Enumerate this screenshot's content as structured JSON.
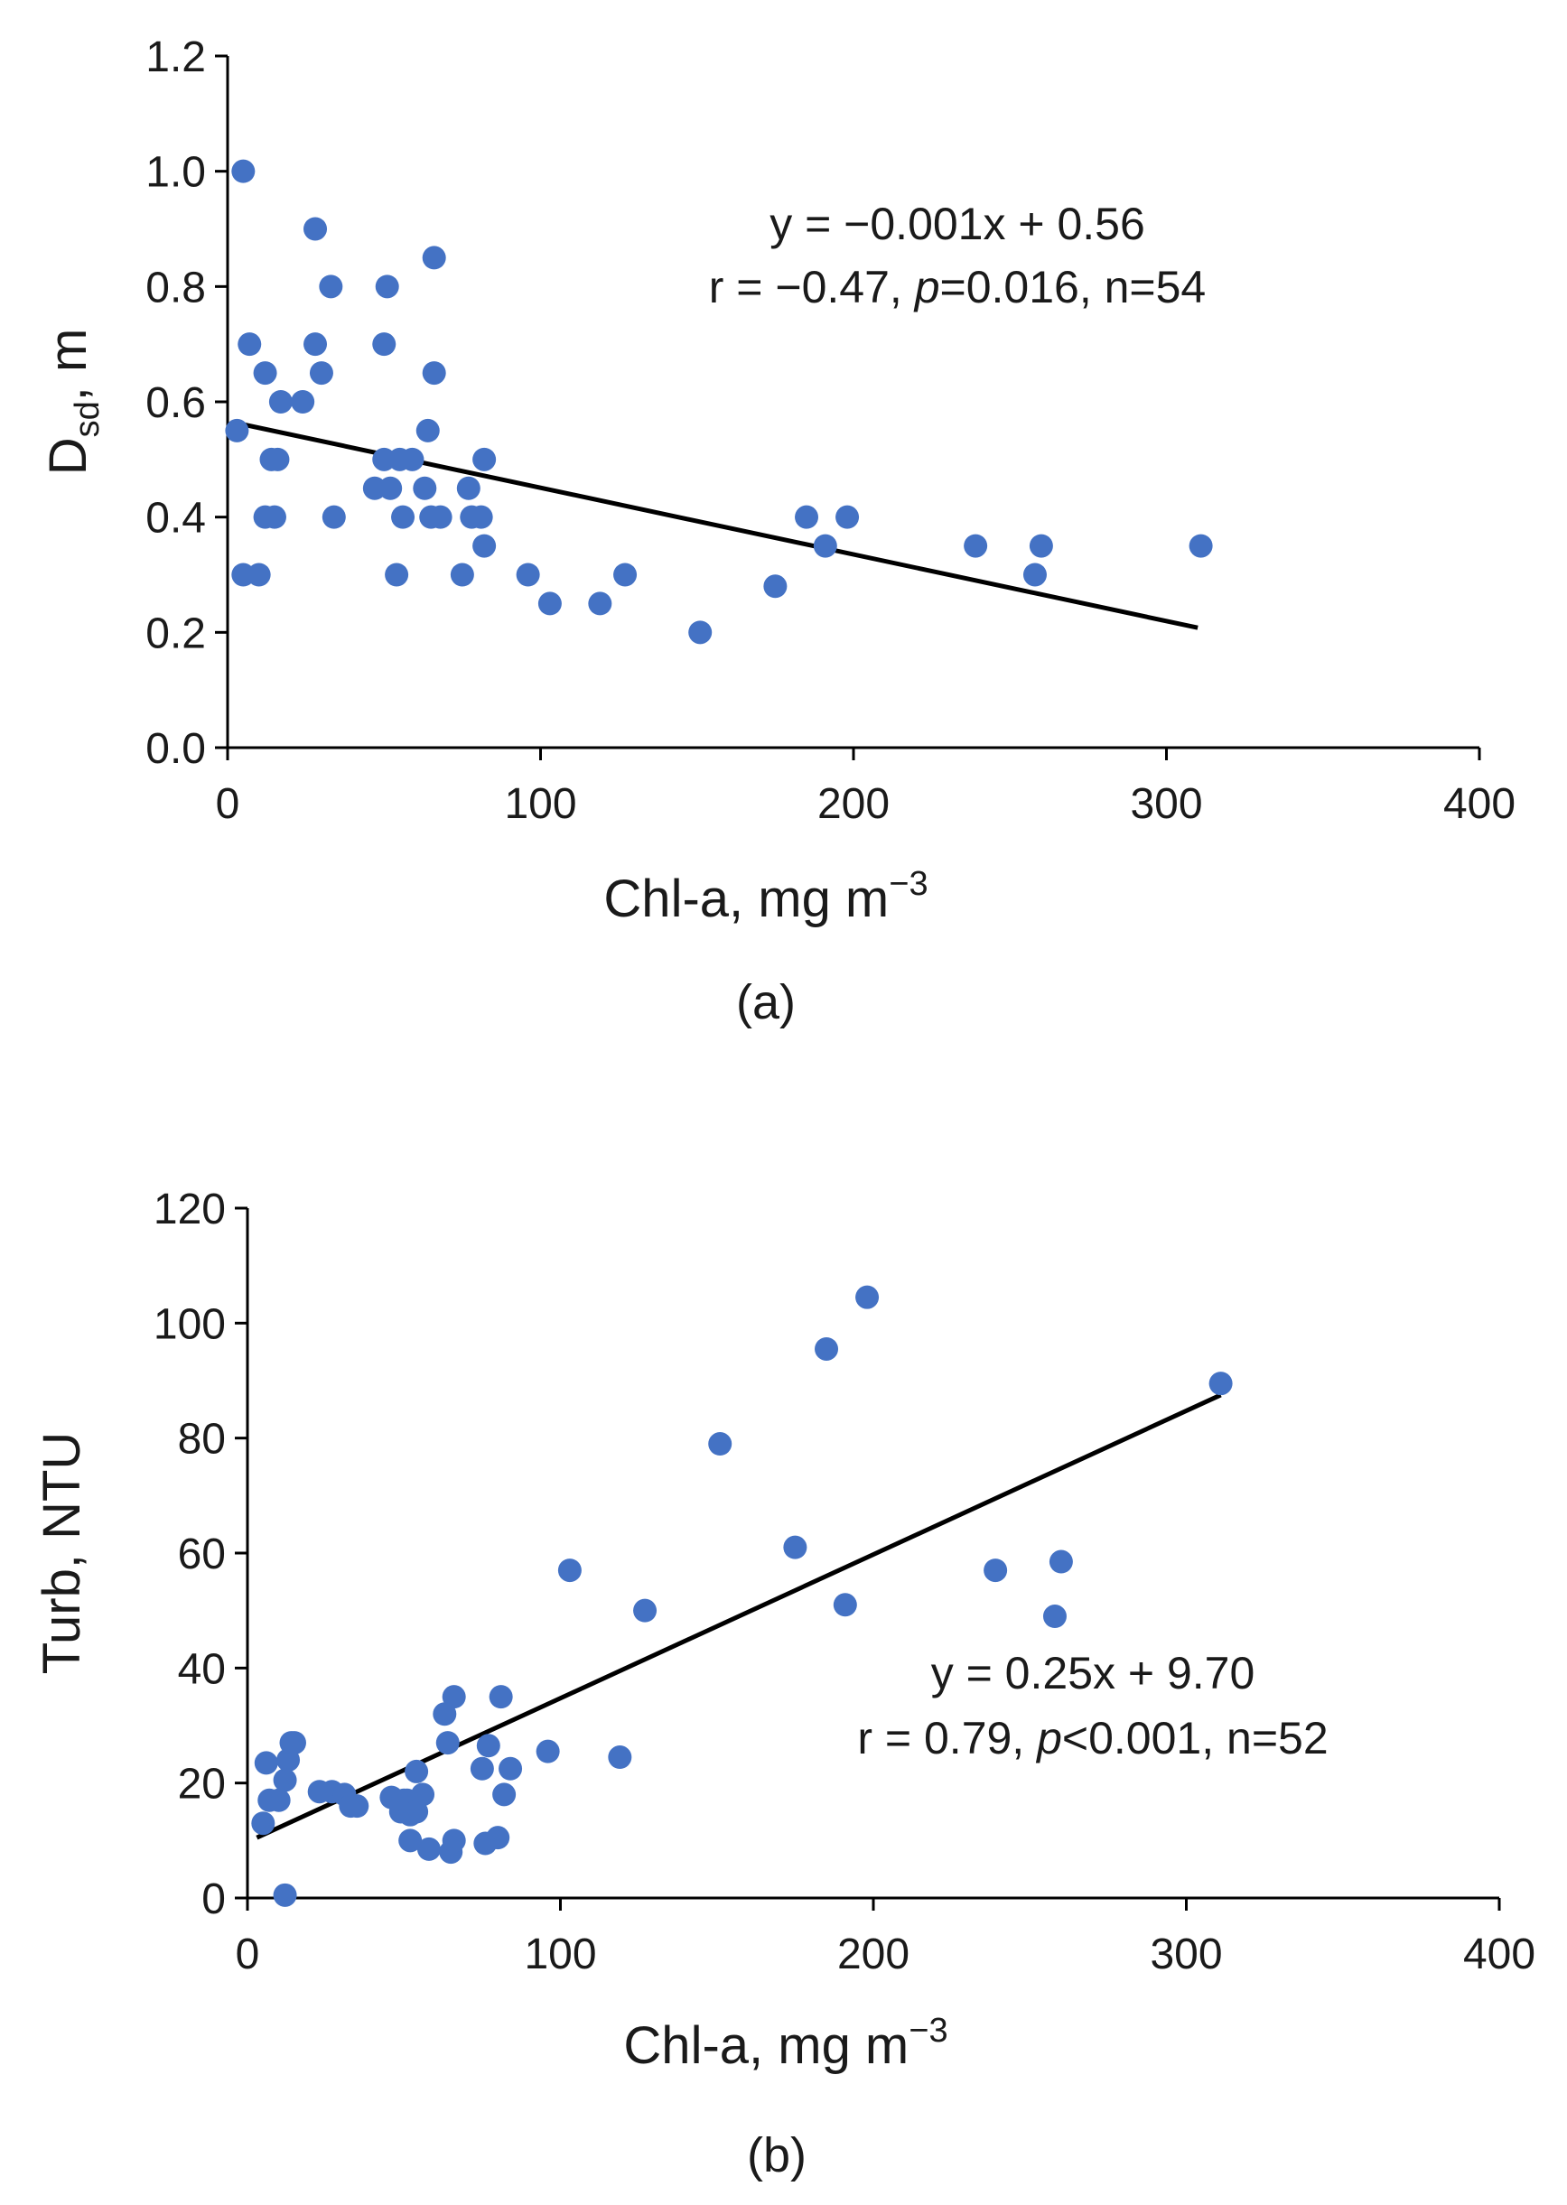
{
  "colors": {
    "point": "#4472C4",
    "line": "#000000",
    "axis": "#000000",
    "text": "#1a1a1a"
  },
  "chart_data": [
    {
      "type": "scatter",
      "panel_label": "(a)",
      "title": "",
      "xlabel_main": "Chl-a, mg m",
      "xlabel_sup": "−3",
      "ylabel_main": "D",
      "ylabel_sub": "sd",
      "ylabel_tail": ", m",
      "xlim": [
        0,
        400
      ],
      "ylim": [
        0,
        1.2
      ],
      "xticks": [
        "0",
        "100",
        "200",
        "300",
        "400"
      ],
      "yticks": [
        "0.0",
        "0.2",
        "0.4",
        "0.6",
        "0.8",
        "1.0",
        "1.2"
      ],
      "grid": false,
      "annotation": {
        "line1": "y = −0.001x + 0.56",
        "line2_a": "r = −0.47, ",
        "line2_p": "p",
        "line2_b": "=0.016, n=54"
      },
      "trendline": {
        "x": [
          3,
          310
        ],
        "y": [
          0.563,
          0.208
        ]
      },
      "points": [
        [
          3,
          0.55
        ],
        [
          5,
          1.0
        ],
        [
          5,
          0.3
        ],
        [
          7,
          0.7
        ],
        [
          10,
          0.3
        ],
        [
          12,
          0.65
        ],
        [
          12,
          0.4
        ],
        [
          14,
          0.5
        ],
        [
          15,
          0.4
        ],
        [
          16,
          0.5
        ],
        [
          17,
          0.6
        ],
        [
          24,
          0.6
        ],
        [
          28,
          0.9
        ],
        [
          28,
          0.7
        ],
        [
          30,
          0.65
        ],
        [
          33,
          0.8
        ],
        [
          34,
          0.4
        ],
        [
          47,
          0.45
        ],
        [
          50,
          0.7
        ],
        [
          50,
          0.5
        ],
        [
          51,
          0.8
        ],
        [
          52,
          0.45
        ],
        [
          54,
          0.3
        ],
        [
          55,
          0.5
        ],
        [
          56,
          0.4
        ],
        [
          59,
          0.5
        ],
        [
          63,
          0.45
        ],
        [
          64,
          0.55
        ],
        [
          65,
          0.4
        ],
        [
          66,
          0.85
        ],
        [
          66,
          0.65
        ],
        [
          68,
          0.4
        ],
        [
          75,
          0.3
        ],
        [
          77,
          0.45
        ],
        [
          78,
          0.4
        ],
        [
          81,
          0.4
        ],
        [
          82,
          0.35
        ],
        [
          82,
          0.5
        ],
        [
          96,
          0.3
        ],
        [
          103,
          0.25
        ],
        [
          119,
          0.25
        ],
        [
          127,
          0.3
        ],
        [
          151,
          0.2
        ],
        [
          175,
          0.28
        ],
        [
          185,
          0.4
        ],
        [
          191,
          0.35
        ],
        [
          198,
          0.4
        ],
        [
          239,
          0.35
        ],
        [
          258,
          0.3
        ],
        [
          260,
          0.35
        ],
        [
          311,
          0.35
        ]
      ]
    },
    {
      "type": "scatter",
      "panel_label": "(b)",
      "title": "",
      "xlabel_main": "Chl-a, mg m",
      "xlabel_sup": "−3",
      "ylabel_main": "Turb, NTU",
      "xlim": [
        0,
        400
      ],
      "ylim": [
        0,
        120
      ],
      "xticks": [
        "0",
        "100",
        "200",
        "300",
        "400"
      ],
      "yticks": [
        "0",
        "20",
        "40",
        "60",
        "80",
        "100",
        "120"
      ],
      "grid": false,
      "annotation": {
        "line1": "y = 0.25x + 9.70",
        "line2_a": "r = 0.79, ",
        "line2_p": "p",
        "line2_b": "<0.001, n=52"
      },
      "trendline": {
        "x": [
          3,
          311
        ],
        "y": [
          10.5,
          87.5
        ]
      },
      "points": [
        [
          5,
          13
        ],
        [
          6,
          23.5
        ],
        [
          7,
          17
        ],
        [
          10,
          17
        ],
        [
          12,
          20.5
        ],
        [
          12,
          0.5
        ],
        [
          13,
          24
        ],
        [
          14,
          27
        ],
        [
          15,
          27
        ],
        [
          23,
          18.5
        ],
        [
          27,
          18.5
        ],
        [
          31,
          18
        ],
        [
          33,
          16
        ],
        [
          35,
          16
        ],
        [
          46,
          17.5
        ],
        [
          49,
          15
        ],
        [
          50,
          17
        ],
        [
          51,
          17
        ],
        [
          52,
          14.5
        ],
        [
          52,
          10
        ],
        [
          54,
          15
        ],
        [
          54,
          22
        ],
        [
          56,
          18
        ],
        [
          58,
          8.5
        ],
        [
          63,
          32
        ],
        [
          64,
          27
        ],
        [
          65,
          8
        ],
        [
          66,
          10
        ],
        [
          66,
          35
        ],
        [
          75,
          22.5
        ],
        [
          76,
          9.5
        ],
        [
          77,
          26.5
        ],
        [
          80,
          10.5
        ],
        [
          81,
          35
        ],
        [
          82,
          18
        ],
        [
          84,
          22.5
        ],
        [
          96,
          25.5
        ],
        [
          103,
          57
        ],
        [
          119,
          24.5
        ],
        [
          127,
          50
        ],
        [
          151,
          79
        ],
        [
          175,
          61
        ],
        [
          185,
          95.5
        ],
        [
          191,
          51
        ],
        [
          198,
          104.5
        ],
        [
          239,
          57
        ],
        [
          258,
          49
        ],
        [
          260,
          58.5
        ],
        [
          311,
          89.5
        ]
      ]
    }
  ]
}
